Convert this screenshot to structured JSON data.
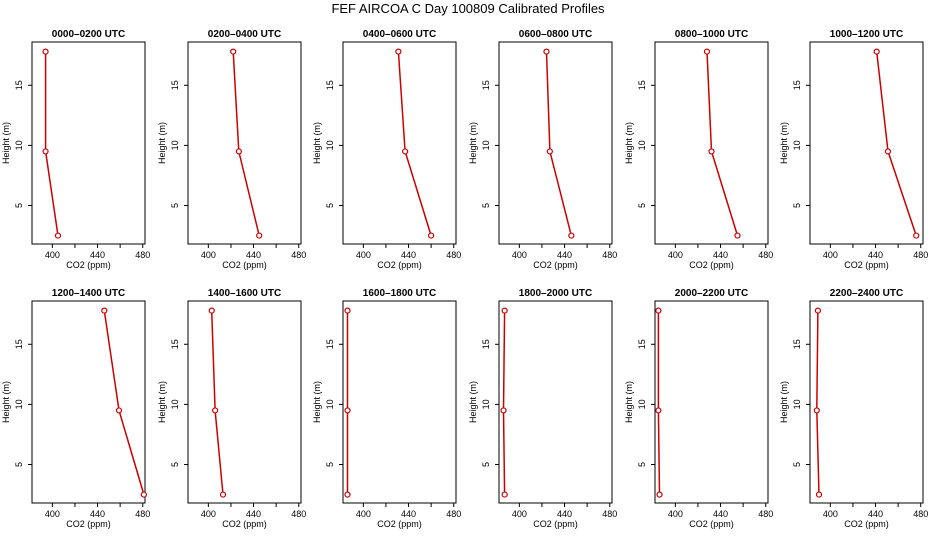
{
  "chart_data": {
    "title": "FEF AIRCOA C  Day 100809  Calibrated Profiles",
    "type": "line",
    "xlabel": "CO2 (ppm)",
    "ylabel": "Height (m)",
    "xlim": [
      382,
      482
    ],
    "ylim": [
      1.8,
      18.6
    ],
    "xticks": [
      400,
      440,
      480
    ],
    "yticks": [
      5,
      10,
      15
    ],
    "line_color": "#cc0000",
    "panels": [
      {
        "title": "0000–0200 UTC",
        "points": [
          {
            "x": 394,
            "y": 17.8
          },
          {
            "x": 394,
            "y": 9.5
          },
          {
            "x": 405,
            "y": 2.5
          }
        ]
      },
      {
        "title": "0200–0400 UTC",
        "points": [
          {
            "x": 422,
            "y": 17.8
          },
          {
            "x": 427,
            "y": 9.5
          },
          {
            "x": 445,
            "y": 2.5
          }
        ]
      },
      {
        "title": "0400–0600 UTC",
        "points": [
          {
            "x": 431,
            "y": 17.8
          },
          {
            "x": 437,
            "y": 9.5
          },
          {
            "x": 460,
            "y": 2.5
          }
        ]
      },
      {
        "title": "0600–0800 UTC",
        "points": [
          {
            "x": 424,
            "y": 17.8
          },
          {
            "x": 427,
            "y": 9.5
          },
          {
            "x": 446,
            "y": 2.5
          }
        ]
      },
      {
        "title": "0800–1000 UTC",
        "points": [
          {
            "x": 428,
            "y": 17.8
          },
          {
            "x": 432,
            "y": 9.5
          },
          {
            "x": 455,
            "y": 2.5
          }
        ]
      },
      {
        "title": "1000–1200 UTC",
        "points": [
          {
            "x": 441,
            "y": 17.8
          },
          {
            "x": 451,
            "y": 9.5
          },
          {
            "x": 476,
            "y": 2.5
          }
        ]
      },
      {
        "title": "1200–1400 UTC",
        "points": [
          {
            "x": 446,
            "y": 17.8
          },
          {
            "x": 459,
            "y": 9.5
          },
          {
            "x": 481,
            "y": 2.5
          }
        ]
      },
      {
        "title": "1400–1600 UTC",
        "points": [
          {
            "x": 403,
            "y": 17.8
          },
          {
            "x": 406,
            "y": 9.5
          },
          {
            "x": 413,
            "y": 2.5
          }
        ]
      },
      {
        "title": "1600–1800 UTC",
        "points": [
          {
            "x": 386,
            "y": 17.8
          },
          {
            "x": 386,
            "y": 9.5
          },
          {
            "x": 386,
            "y": 2.5
          }
        ]
      },
      {
        "title": "1800–2000 UTC",
        "points": [
          {
            "x": 387,
            "y": 17.8
          },
          {
            "x": 386,
            "y": 9.5
          },
          {
            "x": 387,
            "y": 2.5
          }
        ]
      },
      {
        "title": "2000–2200 UTC",
        "points": [
          {
            "x": 385,
            "y": 17.8
          },
          {
            "x": 385,
            "y": 9.5
          },
          {
            "x": 386,
            "y": 2.5
          }
        ]
      },
      {
        "title": "2200–2400 UTC",
        "points": [
          {
            "x": 389,
            "y": 17.8
          },
          {
            "x": 388,
            "y": 9.5
          },
          {
            "x": 390,
            "y": 2.5
          }
        ]
      }
    ]
  }
}
